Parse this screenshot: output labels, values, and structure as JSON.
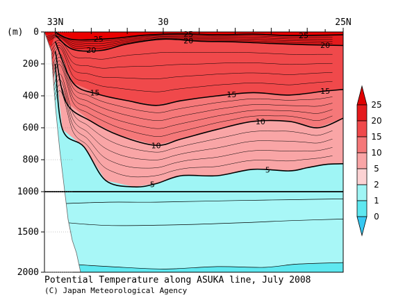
{
  "chart_data": {
    "type": "heatmap",
    "title": "Potential Temperature along ASUKA line, July 2008",
    "credit": "(C) Japan Meteorological Agency",
    "ylabel": "(m)",
    "x_axis": {
      "label_ticks": [
        {
          "value": 33,
          "label": "33N"
        },
        {
          "value": 30,
          "label": "30"
        },
        {
          "value": 25,
          "label": "25N"
        }
      ],
      "xlim": [
        33.3,
        25
      ]
    },
    "y_axis": {
      "upper_ticks": [
        0,
        200,
        400,
        600,
        800,
        1000
      ],
      "lower_ticks": [
        1500,
        2000
      ],
      "break_depth": 1000,
      "ylim": [
        0,
        2000
      ]
    },
    "colorbar": {
      "levels": [
        0,
        1,
        2,
        5,
        10,
        15,
        20,
        25
      ],
      "labels": [
        "25",
        "20",
        "15",
        "10",
        "5",
        "2",
        "1",
        "0"
      ],
      "colors": [
        "#e41a1c",
        "#f0494b",
        "#f57879",
        "#f9a5a6",
        "#fcd2d3",
        "#9ff5f5",
        "#5ee8f0",
        "#35c8f2",
        "#ea0000"
      ]
    },
    "isotherms": [
      {
        "value": 25,
        "labeled": true,
        "label_x": [
          31.8,
          29.3,
          26.1
        ],
        "depth": [
          [
            33.0,
            2
          ],
          [
            32.5,
            48
          ],
          [
            31.5,
            42
          ],
          [
            30.5,
            20
          ],
          [
            29.5,
            12
          ],
          [
            28.5,
            18
          ],
          [
            27.5,
            14
          ],
          [
            26.5,
            22
          ],
          [
            25.0,
            18
          ]
        ]
      },
      {
        "value": 20,
        "labeled": true,
        "label_x": [
          32.0,
          29.3,
          25.5
        ],
        "depth": [
          [
            33.0,
            20
          ],
          [
            32.5,
            110
          ],
          [
            31.7,
            115
          ],
          [
            31.0,
            75
          ],
          [
            30.0,
            45
          ],
          [
            29.0,
            58
          ],
          [
            28.0,
            62
          ],
          [
            27.0,
            72
          ],
          [
            26.0,
            80
          ],
          [
            25.0,
            85
          ]
        ]
      },
      {
        "value": 15,
        "labeled": true,
        "label_x": [
          31.9,
          28.1,
          25.5
        ],
        "depth": [
          [
            33.0,
            60
          ],
          [
            32.5,
            320
          ],
          [
            31.8,
            390
          ],
          [
            31.0,
            430
          ],
          [
            30.2,
            460
          ],
          [
            29.5,
            430
          ],
          [
            28.5,
            400
          ],
          [
            27.5,
            380
          ],
          [
            26.5,
            395
          ],
          [
            25.5,
            370
          ],
          [
            25.0,
            360
          ]
        ]
      },
      {
        "value": 10,
        "labeled": true,
        "label_x": [
          30.2,
          27.3
        ],
        "depth": [
          [
            33.0,
            120
          ],
          [
            32.7,
            440
          ],
          [
            32.0,
            560
          ],
          [
            31.2,
            650
          ],
          [
            30.2,
            710
          ],
          [
            29.5,
            670
          ],
          [
            28.5,
            610
          ],
          [
            27.5,
            560
          ],
          [
            26.5,
            560
          ],
          [
            25.7,
            600
          ],
          [
            25.0,
            540
          ]
        ]
      },
      {
        "value": 5,
        "labeled": true,
        "label_x": [
          30.3,
          27.1
        ],
        "depth": [
          [
            33.0,
            200
          ],
          [
            32.8,
            610
          ],
          [
            32.2,
            720
          ],
          [
            31.6,
            930
          ],
          [
            30.8,
            970
          ],
          [
            30.2,
            950
          ],
          [
            29.5,
            900
          ],
          [
            28.5,
            900
          ],
          [
            27.5,
            860
          ],
          [
            26.5,
            870
          ],
          [
            26.0,
            850
          ],
          [
            25.5,
            830
          ],
          [
            25.0,
            825
          ]
        ]
      },
      {
        "value": 2,
        "labeled": false,
        "label_x": [],
        "depth": [
          [
            32.9,
            1150
          ],
          [
            31.5,
            1130
          ],
          [
            30.2,
            1130
          ],
          [
            28.0,
            1110
          ],
          [
            26.5,
            1100
          ],
          [
            25.0,
            1090
          ]
        ]
      },
      {
        "value": 1.5,
        "labeled": false,
        "label_x": [],
        "depth": [
          [
            32.8,
            1380
          ],
          [
            31.5,
            1420
          ],
          [
            29.5,
            1410
          ],
          [
            27.5,
            1380
          ],
          [
            26.5,
            1360
          ],
          [
            25.0,
            1340
          ]
        ]
      },
      {
        "value": 1.3,
        "labeled": false,
        "label_x": [],
        "depth": [
          [
            32.6,
            1900
          ],
          [
            31.5,
            1930
          ],
          [
            30.0,
            1960
          ],
          [
            28.5,
            1930
          ],
          [
            27.2,
            1940
          ],
          [
            26.3,
            1900
          ],
          [
            25.0,
            1880
          ]
        ]
      }
    ],
    "grid": false
  }
}
